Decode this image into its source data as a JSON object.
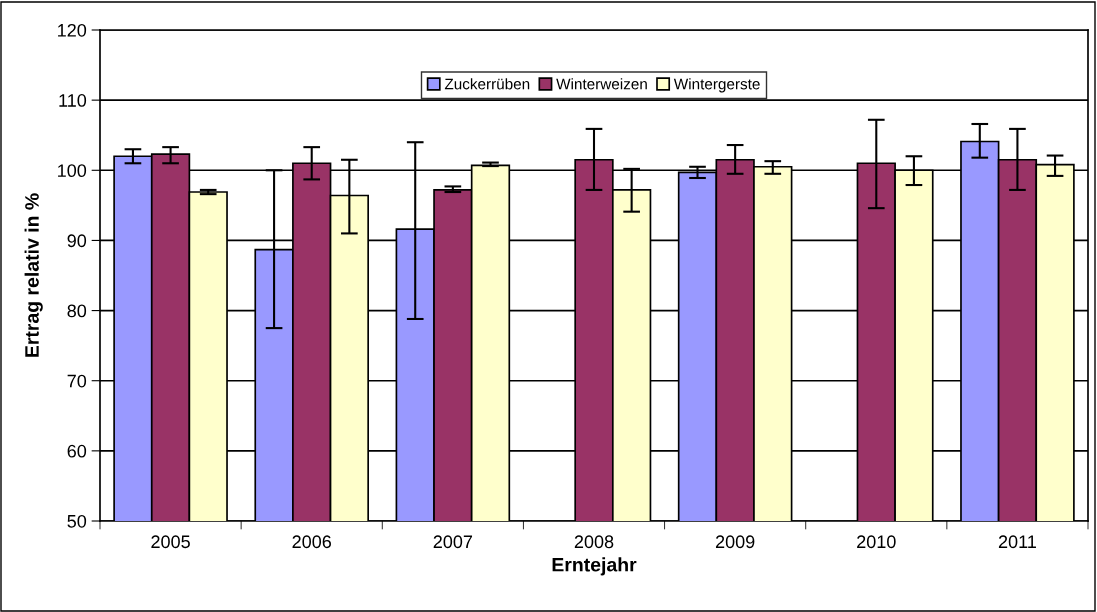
{
  "chart_data": {
    "type": "bar",
    "xlabel": "Erntejahr",
    "ylabel": "Ertrag relativ in %",
    "categories": [
      "2005",
      "2006",
      "2007",
      "2008",
      "2009",
      "2010",
      "2011"
    ],
    "series": [
      {
        "name": "Zuckerrüben",
        "color": "#9999ff",
        "values": [
          102.0,
          88.7,
          91.6,
          null,
          99.7,
          null,
          104.1
        ],
        "errors": [
          [
            101.0,
            103.0
          ],
          [
            77.5,
            100.0
          ],
          [
            78.8,
            104.0
          ],
          null,
          [
            98.9,
            100.5
          ],
          null,
          [
            101.8,
            106.6
          ]
        ]
      },
      {
        "name": "Winterweizen",
        "color": "#993366",
        "values": [
          102.3,
          101.0,
          97.2,
          101.5,
          101.5,
          101.0,
          101.5
        ],
        "errors": [
          [
            101.0,
            103.3
          ],
          [
            98.7,
            103.3
          ],
          [
            96.9,
            97.7
          ],
          [
            97.2,
            105.9
          ],
          [
            99.5,
            103.6
          ],
          [
            94.6,
            107.2
          ],
          [
            97.2,
            105.9
          ]
        ]
      },
      {
        "name": "Wintergerste",
        "color": "#ffffcc",
        "values": [
          96.9,
          96.4,
          100.7,
          97.2,
          100.5,
          100.0,
          100.8
        ],
        "errors": [
          [
            96.6,
            97.2
          ],
          [
            91.0,
            101.5
          ],
          [
            100.6,
            101.1
          ],
          [
            94.1,
            100.2
          ],
          [
            99.5,
            101.3
          ],
          [
            97.9,
            102.0
          ],
          [
            99.2,
            102.1
          ]
        ]
      }
    ],
    "ylim": [
      50,
      120
    ],
    "yticks": [
      50,
      60,
      70,
      80,
      90,
      100,
      110,
      120
    ],
    "grid": "y",
    "legend": "top"
  }
}
